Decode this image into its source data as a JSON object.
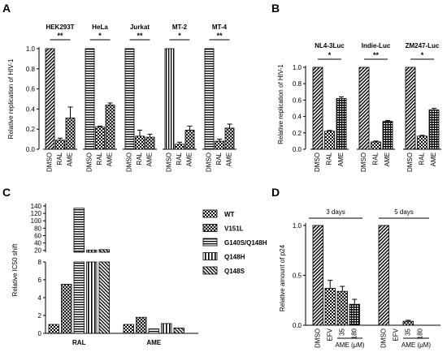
{
  "chart_data": [
    {
      "panel": "A",
      "type": "bar",
      "ylabel": "Relative replication of HIV-1",
      "ylim": [
        0,
        1.0
      ],
      "yticks": [
        "0.0",
        "0.2",
        "0.4",
        "0.6",
        "0.8",
        "1.0"
      ],
      "groups": [
        {
          "title": "HEK293T",
          "categories": [
            "DMSO",
            "RAL",
            "AME"
          ],
          "values": [
            1.0,
            0.09,
            0.31
          ],
          "errors": [
            0,
            0.02,
            0.11
          ],
          "sig": "**",
          "pattern": "diag"
        },
        {
          "title": "HeLa",
          "categories": [
            "DMSO",
            "RAL",
            "AME"
          ],
          "values": [
            1.0,
            0.22,
            0.44
          ],
          "errors": [
            0,
            0.01,
            0.02
          ],
          "sig": "*",
          "pattern": "hstripe"
        },
        {
          "title": "Jurkat",
          "categories": [
            "DMSO",
            "RAL",
            "AME"
          ],
          "values": [
            1.0,
            0.13,
            0.12
          ],
          "errors": [
            0,
            0.06,
            0.03
          ],
          "sig": "**",
          "pattern": "hstripe"
        },
        {
          "title": "MT-2",
          "categories": [
            "DMSO",
            "RAL",
            "AME"
          ],
          "values": [
            1.0,
            0.05,
            0.19
          ],
          "errors": [
            0,
            0.02,
            0.04
          ],
          "sig": "*",
          "pattern": "vstripe"
        },
        {
          "title": "MT-4",
          "categories": [
            "DMSO",
            "RAL",
            "AME"
          ],
          "values": [
            1.0,
            0.08,
            0.21
          ],
          "errors": [
            0,
            0.02,
            0.04
          ],
          "sig": "**",
          "pattern": "hstripe"
        }
      ]
    },
    {
      "panel": "B",
      "type": "bar",
      "ylabel": "Relative replication of HIV-1",
      "ylim": [
        0,
        1.0
      ],
      "yticks": [
        "0.0",
        "0.2",
        "0.4",
        "0.6",
        "0.8",
        "1.0"
      ],
      "groups": [
        {
          "title": "NL4-3Luc",
          "categories": [
            "DMSO",
            "RAL",
            "AME"
          ],
          "values": [
            1.0,
            0.22,
            0.62
          ],
          "errors": [
            0,
            0.01,
            0.02
          ],
          "sig": "*"
        },
        {
          "title": "Indie-Luc",
          "categories": [
            "DMSO",
            "RAL",
            "AME"
          ],
          "values": [
            1.0,
            0.09,
            0.34
          ],
          "errors": [
            0,
            0.01,
            0.01
          ],
          "sig": "**"
        },
        {
          "title": "ZM247-Luc",
          "categories": [
            "DMSO",
            "RAL",
            "AME"
          ],
          "values": [
            1.0,
            0.16,
            0.48
          ],
          "errors": [
            0,
            0.01,
            0.02
          ],
          "sig": "*"
        }
      ]
    },
    {
      "panel": "C",
      "type": "bar",
      "ylabel": "Relative IC50 shift",
      "categories": [
        "RAL",
        "AME"
      ],
      "series": [
        {
          "name": "WT",
          "values": [
            1.0,
            1.0
          ]
        },
        {
          "name": "V151L",
          "values": [
            5.5,
            1.8
          ]
        },
        {
          "name": "G140S/Q148H",
          "values": [
            134,
            0.5
          ]
        },
        {
          "name": "Q148H",
          "values": [
            21,
            1.1
          ]
        },
        {
          "name": "Q148S",
          "values": [
            22,
            0.6
          ]
        }
      ],
      "lower_ylim": [
        0,
        8
      ],
      "upper_ylim": [
        15,
        140
      ],
      "lower_yticks": [
        "0",
        "2",
        "4",
        "6",
        "8"
      ],
      "upper_yticks": [
        "20",
        "40",
        "60",
        "80",
        "100",
        "120",
        "140"
      ]
    },
    {
      "panel": "D",
      "type": "bar",
      "ylabel": "Relative amount of p24",
      "ylim": [
        0,
        1.0
      ],
      "yticks": [
        "0.0",
        "0.5",
        "1.0"
      ],
      "time_labels": [
        "3 days",
        "5 days"
      ],
      "categories": [
        "DMSO",
        "EFV",
        "35",
        "180",
        "DMSO",
        "EFV",
        "35",
        "180"
      ],
      "values": [
        1.0,
        0.37,
        0.34,
        0.21,
        1.0,
        0.0,
        0.04,
        0.0
      ],
      "errors": [
        0,
        0.08,
        0.05,
        0.05,
        0,
        0,
        0.01,
        0
      ],
      "xgroup_label": "AME (μM)"
    }
  ],
  "panel_letters": [
    "A",
    "B",
    "C",
    "D"
  ]
}
